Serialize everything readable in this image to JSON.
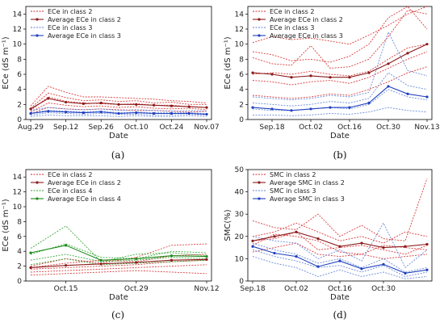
{
  "chart_data": [
    {
      "panel": "(a)",
      "type": "line",
      "xlabel": "Date",
      "ylabel": "ECe (dS m⁻¹)",
      "ylim": [
        0,
        15
      ],
      "yticks": [
        0,
        2,
        4,
        6,
        8,
        10,
        12,
        14
      ],
      "x_ticks": [
        "Aug.29",
        "Sep.12",
        "Sep.26",
        "Oct.10",
        "Oct.24",
        "Nov.07"
      ],
      "x": [
        "Aug.29",
        "Sep.05",
        "Sep.12",
        "Sep.19",
        "Sep.26",
        "Oct.03",
        "Oct.10",
        "Oct.17",
        "Oct.24",
        "Oct.31",
        "Nov.07"
      ],
      "grid": false,
      "legend_position": "top-left",
      "series": [
        {
          "name": "ECe in class 2",
          "style": "dotted",
          "color": "#d62728",
          "lines": [
            [
              1.8,
              4.4,
              3.6,
              3.0,
              3.0,
              2.9,
              2.8,
              2.7,
              2.5,
              2.4,
              2.2
            ],
            [
              1.5,
              3.5,
              2.9,
              2.5,
              2.6,
              2.4,
              2.5,
              2.2,
              2.3,
              2.0,
              2.0
            ],
            [
              1.2,
              3.0,
              2.4,
              2.2,
              2.1,
              2.0,
              2.1,
              1.9,
              1.9,
              1.7,
              1.6
            ],
            [
              1.0,
              2.2,
              1.9,
              1.7,
              1.8,
              1.6,
              1.7,
              1.5,
              1.4,
              1.5,
              1.3
            ],
            [
              0.8,
              1.6,
              1.4,
              1.3,
              1.4,
              1.3,
              1.2,
              1.2,
              1.1,
              1.0,
              1.1
            ]
          ]
        },
        {
          "name": "Average ECe in class 2",
          "style": "solid-marker",
          "color": "#8b1a1a",
          "values": [
            1.4,
            2.8,
            2.3,
            2.1,
            2.2,
            2.0,
            2.0,
            1.9,
            1.8,
            1.7,
            1.6
          ]
        },
        {
          "name": "ECe in class 3",
          "style": "dotted",
          "color": "#5b7fd6",
          "lines": [
            [
              1.2,
              1.6,
              1.4,
              1.3,
              1.4,
              1.2,
              1.3,
              1.2,
              1.1,
              1.2,
              1.1
            ],
            [
              0.9,
              1.2,
              1.1,
              1.0,
              1.1,
              0.9,
              1.0,
              0.9,
              0.9,
              0.9,
              0.8
            ],
            [
              0.6,
              0.9,
              0.8,
              0.7,
              0.8,
              0.7,
              0.7,
              0.6,
              0.6,
              0.7,
              0.6
            ],
            [
              0.4,
              0.6,
              0.5,
              0.5,
              0.5,
              0.4,
              0.5,
              0.4,
              0.4,
              0.5,
              0.4
            ]
          ]
        },
        {
          "name": "Average ECe in class 3",
          "style": "solid-marker",
          "color": "#1f3fbf",
          "values": [
            0.8,
            1.1,
            1.0,
            0.9,
            1.0,
            0.8,
            0.9,
            0.8,
            0.8,
            0.8,
            0.7
          ]
        }
      ]
    },
    {
      "panel": "(b)",
      "type": "line",
      "xlabel": "Date",
      "ylabel": "ECe (dS m⁻¹)",
      "ylim": [
        0,
        15
      ],
      "yticks": [
        0,
        2,
        4,
        6,
        8,
        10,
        12,
        14
      ],
      "x_ticks": [
        "Sep.18",
        "Oct.02",
        "Oct.16",
        "Oct.30",
        "Nov.13"
      ],
      "x": [
        "Sep.11",
        "Sep.18",
        "Sep.25",
        "Oct.02",
        "Oct.09",
        "Oct.16",
        "Oct.23",
        "Oct.30",
        "Nov.06",
        "Nov.13"
      ],
      "grid": false,
      "legend_position": "top-left",
      "series": [
        {
          "name": "ECe in class 2",
          "style": "dotted",
          "color": "#d62728",
          "lines": [
            [
              10.2,
              11.0,
              10.6,
              10.8,
              10.4,
              10.0,
              11.2,
              12.5,
              14.0,
              15.0
            ],
            [
              9.0,
              8.6,
              7.8,
              8.0,
              7.6,
              8.4,
              10.0,
              13.5,
              15.0,
              12.0
            ],
            [
              8.2,
              7.4,
              7.2,
              9.8,
              6.8,
              7.0,
              8.0,
              11.0,
              14.5,
              14.0
            ],
            [
              6.0,
              6.2,
              6.0,
              6.4,
              6.0,
              5.8,
              6.4,
              8.0,
              9.5,
              10.0
            ],
            [
              5.2,
              5.0,
              4.6,
              5.0,
              5.2,
              4.8,
              5.6,
              6.8,
              8.0,
              9.0
            ],
            [
              3.2,
              3.0,
              2.8,
              3.0,
              3.4,
              3.2,
              4.0,
              5.0,
              6.2,
              7.0
            ]
          ]
        },
        {
          "name": "Average ECe in class 2",
          "style": "solid-marker",
          "color": "#8b1a1a",
          "values": [
            6.2,
            6.0,
            5.6,
            5.8,
            5.6,
            5.6,
            6.2,
            7.4,
            8.8,
            10.0
          ]
        },
        {
          "name": "ECe in class 3",
          "style": "dotted",
          "color": "#5b7fd6",
          "lines": [
            [
              3.0,
              2.8,
              2.6,
              2.8,
              3.2,
              3.0,
              3.6,
              11.6,
              6.5,
              5.8
            ],
            [
              2.2,
              2.0,
              1.8,
              2.0,
              2.4,
              2.2,
              2.8,
              6.2,
              4.5,
              4.0
            ],
            [
              1.4,
              1.2,
              1.2,
              1.4,
              1.6,
              1.4,
              2.0,
              4.0,
              3.0,
              2.6
            ],
            [
              0.6,
              0.6,
              0.5,
              0.6,
              0.8,
              0.7,
              1.0,
              1.6,
              1.2,
              1.0
            ]
          ]
        },
        {
          "name": "Average ECe in class 3",
          "style": "solid-marker",
          "color": "#1f3fbf",
          "values": [
            1.6,
            1.4,
            1.2,
            1.4,
            1.6,
            1.6,
            2.2,
            4.4,
            3.4,
            3.0
          ]
        }
      ]
    },
    {
      "panel": "(c)",
      "type": "line",
      "xlabel": "Date",
      "ylabel": "ECe (dS m⁻¹)",
      "ylim": [
        0,
        15
      ],
      "yticks": [
        0,
        2,
        4,
        6,
        8,
        10,
        12,
        14
      ],
      "x_ticks": [
        "Oct.15",
        "Oct.29",
        "Nov.12"
      ],
      "x": [
        "Oct.08",
        "Oct.15",
        "Oct.22",
        "Oct.29",
        "Nov.05",
        "Nov.12"
      ],
      "grid": false,
      "legend_position": "top-left",
      "series": [
        {
          "name": "ECe in class 2",
          "style": "dotted",
          "color": "#d62728",
          "lines": [
            [
              2.0,
              3.0,
              2.4,
              3.2,
              4.8,
              5.0
            ],
            [
              1.8,
              2.4,
              2.8,
              2.6,
              3.4,
              3.6
            ],
            [
              1.6,
              1.8,
              2.0,
              2.2,
              2.6,
              2.8
            ],
            [
              1.2,
              1.4,
              1.6,
              1.8,
              2.0,
              2.2
            ],
            [
              0.8,
              1.0,
              1.2,
              1.4,
              1.2,
              1.0
            ]
          ]
        },
        {
          "name": "Average ECe in class 2",
          "style": "solid-marker",
          "color": "#8b1a1a",
          "values": [
            1.8,
            2.1,
            2.3,
            2.5,
            2.8,
            2.9
          ]
        },
        {
          "name": "ECe in class 4",
          "style": "dotted",
          "color": "#2ca02c",
          "lines": [
            [
              4.4,
              7.4,
              2.6,
              3.6,
              3.8,
              3.4
            ],
            [
              3.6,
              5.0,
              3.2,
              3.0,
              4.0,
              3.8
            ],
            [
              2.8,
              3.6,
              2.6,
              2.8,
              3.2,
              3.0
            ],
            [
              2.2,
              3.0,
              2.2,
              2.4,
              2.6,
              2.8
            ]
          ]
        },
        {
          "name": "Average ECe in class 4",
          "style": "solid-marker",
          "color": "#1a8a1a",
          "values": [
            3.8,
            4.8,
            2.8,
            3.0,
            3.4,
            3.3
          ]
        }
      ]
    },
    {
      "panel": "(d)",
      "type": "line",
      "xlabel": "Date",
      "ylabel": "SMC(%)",
      "ylim": [
        0,
        50
      ],
      "yticks": [
        0,
        10,
        20,
        30,
        40,
        50
      ],
      "x_ticks": [
        "Sep.18",
        "Oct.02",
        "Oct.16",
        "Oct.30"
      ],
      "x": [
        "Sep.18",
        "Sep.25",
        "Oct.02",
        "Oct.09",
        "Oct.16",
        "Oct.23",
        "Oct.30",
        "Nov.06",
        "Nov.13"
      ],
      "grid": false,
      "legend_position": "top-left",
      "series": [
        {
          "name": "SMC in class 2",
          "style": "dotted",
          "color": "#d62728",
          "lines": [
            [
              27.0,
              24.0,
              23.0,
              30.0,
              20.0,
              25.0,
              19.0,
              18.0,
              46.0
            ],
            [
              20.0,
              22.0,
              26.0,
              22.0,
              18.0,
              20.0,
              17.0,
              22.0,
              20.0
            ],
            [
              18.0,
              19.0,
              22.0,
              14.0,
              15.0,
              16.0,
              14.0,
              12.0,
              16.0
            ],
            [
              16.0,
              21.0,
              20.0,
              18.0,
              13.0,
              12.0,
              16.0,
              15.0,
              14.0
            ],
            [
              13.0,
              15.0,
              17.0,
              12.0,
              11.0,
              12.0,
              10.0,
              11.0,
              12.0
            ]
          ]
        },
        {
          "name": "Average SMC in class 2",
          "style": "solid-marker",
          "color": "#8b1a1a",
          "values": [
            18.0,
            20.0,
            22.0,
            19.0,
            15.5,
            17.0,
            15.0,
            15.5,
            16.5
          ]
        },
        {
          "name": "SMC in class 3",
          "style": "dotted",
          "color": "#5b7fd6",
          "lines": [
            [
              20.0,
              18.0,
              17.0,
              10.0,
              14.0,
              9.0,
              26.0,
              6.0,
              14.0
            ],
            [
              17.0,
              14.0,
              12.0,
              8.0,
              10.0,
              6.0,
              10.0,
              4.0,
              6.0
            ],
            [
              14.0,
              11.0,
              9.0,
              6.0,
              7.0,
              4.0,
              7.0,
              2.0,
              4.0
            ],
            [
              11.0,
              8.0,
              6.0,
              2.0,
              5.0,
              2.0,
              4.0,
              1.0,
              2.0
            ]
          ]
        },
        {
          "name": "Average SMC in class 3",
          "style": "solid-marker",
          "color": "#1f3fbf",
          "values": [
            15.5,
            12.5,
            11.0,
            6.5,
            9.0,
            5.5,
            7.5,
            3.5,
            5.0
          ]
        }
      ]
    }
  ]
}
